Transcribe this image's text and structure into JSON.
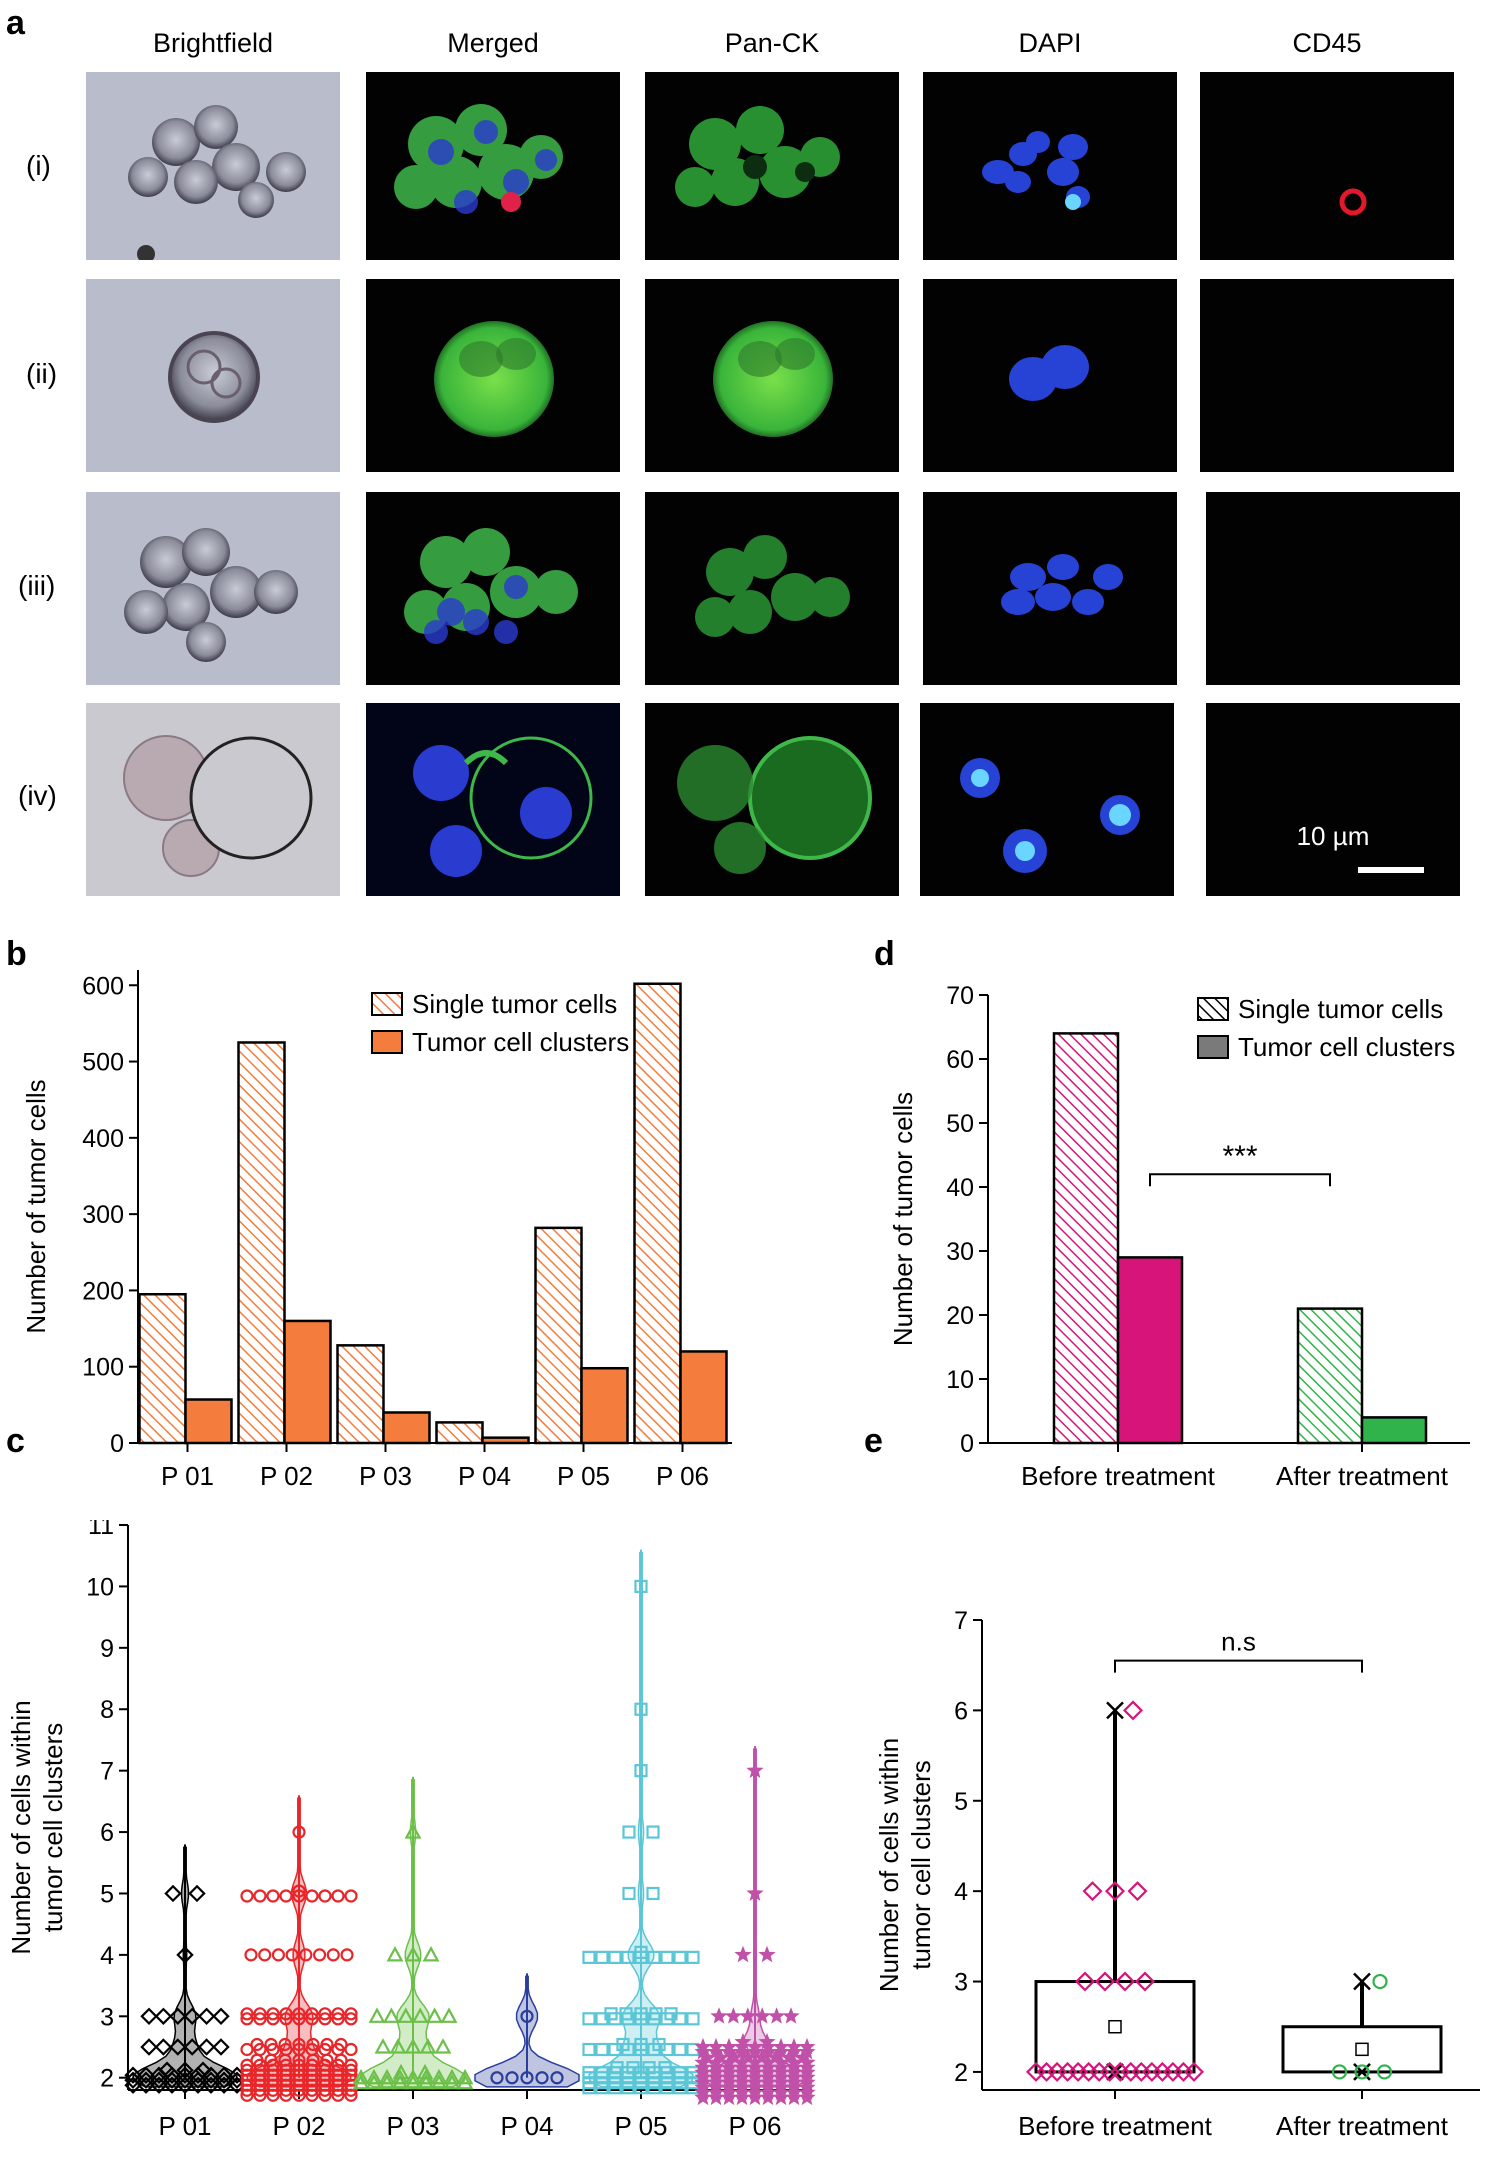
{
  "panel_a": {
    "letter": "a",
    "columns": [
      "Brightfield",
      "Merged",
      "Pan-CK",
      "DAPI",
      "CD45"
    ],
    "rows": [
      "(i)",
      "(ii)",
      "(iii)",
      "(iv)"
    ],
    "scale_bar": "10 µm"
  },
  "chart_data": [
    {
      "id": "b",
      "type": "bar",
      "panel_letter": "b",
      "categories": [
        "P 01",
        "P 02",
        "P 03",
        "P 04",
        "P 05",
        "P 06"
      ],
      "series": [
        {
          "name": "Single tumor cells",
          "values": [
            195,
            525,
            128,
            27,
            282,
            602
          ],
          "color": "#f47c3c",
          "style": "hatched"
        },
        {
          "name": "Tumor cell clusters",
          "values": [
            57,
            160,
            40,
            7,
            98,
            120
          ],
          "color": "#f47c3c",
          "style": "solid"
        }
      ],
      "ylabel": "Number of tumor cells",
      "ylim": [
        0,
        620
      ],
      "yticks": [
        0,
        100,
        200,
        300,
        400,
        500,
        600
      ],
      "legend": "top-right"
    },
    {
      "id": "d",
      "type": "bar",
      "panel_letter": "d",
      "categories": [
        "Before treatment",
        "After treatment"
      ],
      "series": [
        {
          "name": "Single tumor cells",
          "values": [
            64,
            21
          ],
          "style": "hatched"
        },
        {
          "name": "Tumor cell clusters",
          "values": [
            29,
            4
          ],
          "style": "solid"
        }
      ],
      "colors": {
        "before": "#d6147a",
        "after": "#2fb34a",
        "legend_solid": "#7a7a7a"
      },
      "ylabel": "Number of tumor cells",
      "ylim": [
        0,
        70
      ],
      "yticks": [
        0,
        10,
        20,
        30,
        40,
        50,
        60,
        70
      ],
      "annotation": "***",
      "legend": "top-right"
    },
    {
      "id": "c",
      "type": "scatter",
      "panel_letter": "c",
      "categories": [
        "P 01",
        "P 02",
        "P 03",
        "P 04",
        "P 05",
        "P 06"
      ],
      "ylabel": "Number of cells within tumor cell clusters",
      "ylim": [
        1.8,
        11
      ],
      "yticks": [
        2,
        3,
        4,
        5,
        6,
        7,
        8,
        9,
        10,
        11
      ],
      "groups": [
        {
          "name": "P 01",
          "color": "#000000",
          "marker": "diamond",
          "max": 5.8,
          "counts": {
            "2": 30,
            "2.5": 6,
            "3": 6,
            "4": 1,
            "5": 2
          }
        },
        {
          "name": "P 02",
          "color": "#e8262a",
          "marker": "circle",
          "max": 6.6,
          "counts": {
            "2": 70,
            "2.5": 16,
            "3": 18,
            "4": 8,
            "5": 10,
            "6": 1
          }
        },
        {
          "name": "P 03",
          "color": "#6cc04a",
          "marker": "triangle",
          "max": 6.9,
          "counts": {
            "2": 20,
            "2.5": 5,
            "3": 6,
            "4": 3,
            "6": 1
          }
        },
        {
          "name": "P 04",
          "color": "#2a3f9d",
          "marker": "circle",
          "max": 3.7,
          "counts": {
            "2": 5,
            "3": 1
          }
        },
        {
          "name": "P 05",
          "color": "#5ac6d6",
          "marker": "square",
          "max": 10.6,
          "counts": {
            "2": 40,
            "2.5": 12,
            "3": 14,
            "4": 10,
            "5": 2,
            "6": 2,
            "7": 1,
            "8": 1,
            "10": 1
          }
        },
        {
          "name": "P 06",
          "color": "#c050a8",
          "marker": "star",
          "max": 7.4,
          "counts": {
            "2": 80,
            "2.5": 20,
            "3": 6,
            "4": 2,
            "5": 1,
            "7": 1
          }
        }
      ]
    },
    {
      "id": "e",
      "type": "scatter",
      "panel_letter": "e",
      "categories": [
        "Before treatment",
        "After treatment"
      ],
      "ylabel": "Number of cells within tumor cell clusters",
      "ylim": [
        1.8,
        7
      ],
      "yticks": [
        2,
        3,
        4,
        5,
        6,
        7
      ],
      "groups": [
        {
          "name": "Before treatment",
          "color": "#d6147a",
          "marker": "diamond",
          "box": {
            "q1": 2,
            "median": 2,
            "q3": 3,
            "min": 2,
            "max": 6,
            "mean": 2.5
          },
          "points": {
            "2": 16,
            "3": 4,
            "4": 3,
            "6": 1
          }
        },
        {
          "name": "After treatment",
          "color": "#2fb34a",
          "marker": "circle",
          "box": {
            "q1": 2,
            "median": 2,
            "q3": 2.5,
            "min": 2,
            "max": 3,
            "mean": 2.25
          },
          "points": {
            "2": 3,
            "3": 1
          }
        }
      ],
      "annotation": "n.s"
    }
  ]
}
